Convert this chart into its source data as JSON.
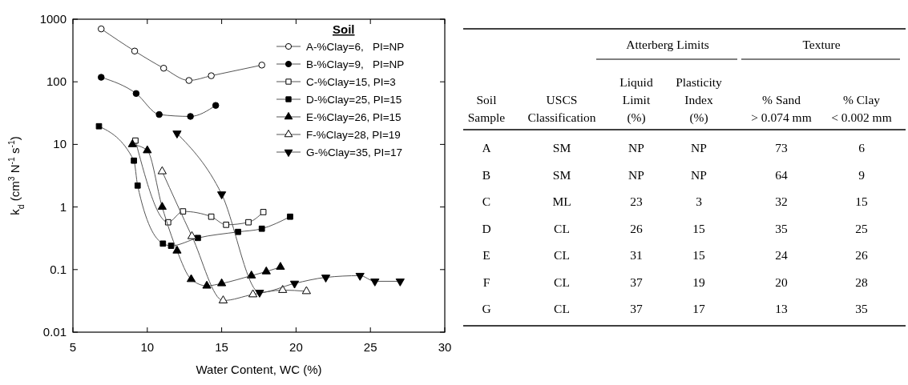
{
  "chart_data": [
    {
      "type": "line",
      "xlabel": "Water Content, WC (%)",
      "ylabel": "k$_{d}$ (cm$^{3}$ N$^{-1}$ s$^{-1}$)",
      "legend_title": "Soil",
      "legend": "top right",
      "log": "y",
      "grid": false,
      "xlim": [
        5,
        30
      ],
      "xticks": [
        5,
        10,
        15,
        20,
        25,
        30
      ],
      "ylim": [
        0.01,
        1000
      ],
      "yticks": [
        0.01,
        0.1,
        1,
        10,
        100,
        1000
      ],
      "line_style": "solid",
      "series": [
        {
          "name": "A-%Clay=6,   PI=NP",
          "color": "#ffffff",
          "marker": "circle",
          "x": [
            6.9,
            9.15,
            11.1,
            12.8,
            14.3,
            17.7
          ],
          "values": [
            700,
            310,
            165,
            105,
            125,
            185
          ]
        },
        {
          "name": "B-%Clay=9,   PI=NP",
          "color": "#000000",
          "marker": "circle",
          "x": [
            6.9,
            9.25,
            10.8,
            12.9,
            14.6
          ],
          "values": [
            118,
            65,
            30,
            28,
            42
          ]
        },
        {
          "name": "C-%Clay=15, PI=3",
          "color": "#ffffff",
          "marker": "square",
          "x": [
            9.2,
            11.4,
            12.4,
            14.3,
            15.3,
            16.8,
            17.8
          ],
          "values": [
            11.5,
            0.57,
            0.85,
            0.7,
            0.52,
            0.57,
            0.83
          ]
        },
        {
          "name": "D-%Clay=25, PI=15",
          "color": "#000000",
          "marker": "square",
          "x": [
            6.75,
            9.1,
            9.35,
            11.05,
            11.6,
            13.4,
            16.1,
            17.7,
            19.6
          ],
          "values": [
            19.5,
            5.5,
            2.2,
            0.26,
            0.24,
            0.32,
            0.4,
            0.45,
            0.7
          ]
        },
        {
          "name": "E-%Clay=26, PI=15",
          "color": "#000000",
          "marker": "triangle",
          "x": [
            9,
            10,
            11,
            12,
            12.95,
            14,
            15,
            17,
            18,
            18.95
          ],
          "values": [
            10,
            8,
            1,
            0.2,
            0.07,
            0.055,
            0.06,
            0.08,
            0.093,
            0.11
          ]
        },
        {
          "name": "F-%Clay=28, PI=19",
          "color": "#ffffff",
          "marker": "triangle",
          "x": [
            11,
            13,
            15.1,
            17.1,
            19.1,
            20.7
          ],
          "values": [
            3.7,
            0.34,
            0.032,
            0.04,
            0.047,
            0.045
          ]
        },
        {
          "name": "G-%Clay=35, PI=17",
          "color": "#000000",
          "marker": "triangle-down",
          "x": [
            12,
            15,
            17.55,
            19.9,
            22,
            24.3,
            25.3,
            27
          ],
          "values": [
            15,
            1.6,
            0.043,
            0.06,
            0.075,
            0.08,
            0.065,
            0.065
          ]
        }
      ]
    },
    {
      "type": "other",
      "annotations": [
        "Atterberg Limits",
        "Texture"
      ],
      "categories": [
        "Soil\nSample",
        "USCS\nClassification",
        "Liquid\nLimit\n(%)",
        "Plasticity\nIndex\n(%)",
        "% Sand\n> 0.074 mm",
        "% Clay\n< 0.002 mm"
      ],
      "cell_labels": [
        [
          "A",
          "SM",
          "NP",
          "NP",
          "73",
          "6"
        ],
        [
          "B",
          "SM",
          "NP",
          "NP",
          "64",
          "9"
        ],
        [
          "C",
          "ML",
          "23",
          "3",
          "32",
          "15"
        ],
        [
          "D",
          "CL",
          "26",
          "15",
          "35",
          "25"
        ],
        [
          "E",
          "CL",
          "31",
          "15",
          "24",
          "26"
        ],
        [
          "F",
          "CL",
          "37",
          "19",
          "20",
          "28"
        ],
        [
          "G",
          "CL",
          "37",
          "17",
          "13",
          "35"
        ]
      ]
    }
  ]
}
